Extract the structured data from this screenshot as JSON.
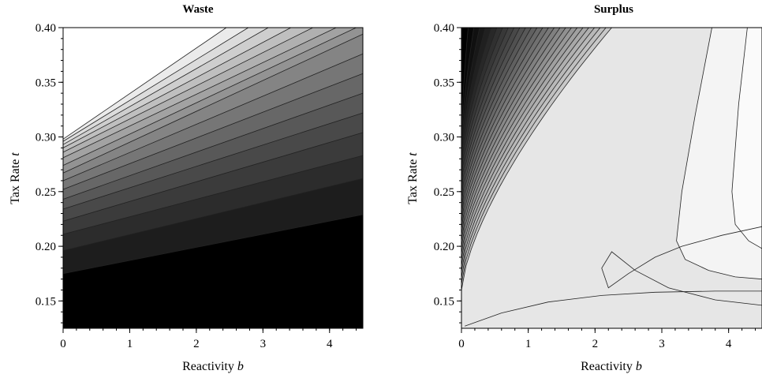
{
  "chart_data": [
    {
      "type": "contour",
      "title": "Waste",
      "xlabel": "Reactivity",
      "xlabel_var": "b",
      "ylabel": "Tax Rate",
      "ylabel_var": "t",
      "xlim": [
        0,
        4.5
      ],
      "ylim": [
        0.125,
        0.4
      ],
      "xticks": [
        0,
        1,
        2,
        3,
        4
      ],
      "yticks": [
        0.15,
        0.2,
        0.25,
        0.3,
        0.35,
        0.4
      ],
      "xtick_labels": [
        "0",
        "1",
        "2",
        "3",
        "4"
      ],
      "ytick_labels": [
        "0.15",
        "0.20",
        "0.25",
        "0.30",
        "0.35",
        "0.40"
      ],
      "contour_lines": [
        {
          "x": [
            0,
            4.5
          ],
          "y": [
            0.175,
            0.229
          ]
        },
        {
          "x": [
            0,
            4.5
          ],
          "y": [
            0.196,
            0.262
          ]
        },
        {
          "x": [
            0,
            4.5
          ],
          "y": [
            0.211,
            0.283
          ]
        },
        {
          "x": [
            0,
            4.5
          ],
          "y": [
            0.223,
            0.304
          ]
        },
        {
          "x": [
            0,
            4.5
          ],
          "y": [
            0.234,
            0.322
          ]
        },
        {
          "x": [
            0,
            4.5
          ],
          "y": [
            0.243,
            0.34
          ]
        },
        {
          "x": [
            0,
            4.5
          ],
          "y": [
            0.252,
            0.358
          ]
        },
        {
          "x": [
            0,
            4.5
          ],
          "y": [
            0.26,
            0.376
          ]
        },
        {
          "x": [
            0,
            4.5
          ],
          "y": [
            0.267,
            0.394
          ]
        },
        {
          "x": [
            0,
            4.4
          ],
          "y": [
            0.274,
            0.4
          ]
        },
        {
          "x": [
            0,
            4.1
          ],
          "y": [
            0.281,
            0.4
          ]
        },
        {
          "x": [
            0,
            3.75
          ],
          "y": [
            0.286,
            0.4
          ]
        },
        {
          "x": [
            0,
            3.42
          ],
          "y": [
            0.29,
            0.4
          ]
        },
        {
          "x": [
            0,
            3.08
          ],
          "y": [
            0.293,
            0.4
          ]
        },
        {
          "x": [
            0,
            2.78
          ],
          "y": [
            0.296,
            0.4
          ]
        },
        {
          "x": [
            0,
            2.45
          ],
          "y": [
            0.298,
            0.4
          ]
        }
      ]
    },
    {
      "type": "contour",
      "title": "Surplus",
      "xlabel": "Reactivity",
      "xlabel_var": "b",
      "ylabel": "Tax Rate",
      "ylabel_var": "t",
      "xlim": [
        0,
        4.5
      ],
      "ylim": [
        0.125,
        0.4
      ],
      "xticks": [
        0,
        1,
        2,
        3,
        4
      ],
      "yticks": [
        0.15,
        0.2,
        0.25,
        0.3,
        0.35,
        0.4
      ],
      "xtick_labels": [
        "0",
        "1",
        "2",
        "3",
        "4"
      ],
      "ytick_labels": [
        "0.15",
        "0.20",
        "0.25",
        "0.30",
        "0.35",
        "0.40"
      ],
      "contour_lines": [
        {
          "x": [
            0.05,
            0.6,
            1.3,
            2.1,
            2.9,
            3.8,
            4.5
          ],
          "y": [
            0.127,
            0.139,
            0.149,
            0.155,
            0.158,
            0.159,
            0.159
          ]
        },
        {
          "x": [
            4.5,
            3.9,
            3.3,
            2.9,
            2.5,
            2.2,
            2.1,
            2.25,
            2.6,
            3.1,
            3.8,
            4.5
          ],
          "y": [
            0.218,
            0.21,
            0.2,
            0.19,
            0.175,
            0.162,
            0.18,
            0.195,
            0.178,
            0.162,
            0.151,
            0.146
          ]
        },
        {
          "x": [
            3.75,
            3.5,
            3.3,
            3.22,
            3.35,
            3.7,
            4.1,
            4.5
          ],
          "y": [
            0.4,
            0.32,
            0.25,
            0.205,
            0.188,
            0.178,
            0.172,
            0.17
          ]
        },
        {
          "x": [
            4.28,
            4.15,
            4.05,
            4.1,
            4.3,
            4.5
          ],
          "y": [
            0.4,
            0.33,
            0.25,
            0.22,
            0.205,
            0.198
          ]
        }
      ]
    }
  ]
}
